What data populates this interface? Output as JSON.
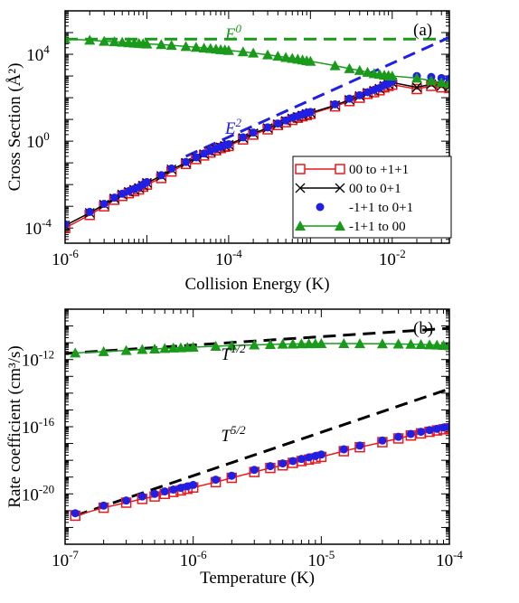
{
  "chart_data": [
    {
      "type": "line",
      "panel_label": "(a)",
      "xlabel": "Collision Energy (K)",
      "ylabel": "Cross Section (Å²)",
      "xscale": "log",
      "yscale": "log",
      "xlim": [
        1e-06,
        0.05
      ],
      "ylim": [
        2e-05,
        1000000.0
      ],
      "xticks": [
        {
          "v": 1e-06,
          "m": "10",
          "e": "-6"
        },
        {
          "v": 0.0001,
          "m": "10",
          "e": "-4"
        },
        {
          "v": 0.01,
          "m": "10",
          "e": "-2"
        }
      ],
      "yticks": [
        {
          "v": 0.0001,
          "m": "10",
          "e": "-4"
        },
        {
          "v": 1,
          "m": "10",
          "e": "0"
        },
        {
          "v": 10000.0,
          "m": "10",
          "e": "4"
        }
      ],
      "legend_position": "inside-right",
      "series": [
        {
          "name": "00 to +1+1",
          "color": "#e8191c",
          "marker": "open-square",
          "line": "solid",
          "x": [
            1e-06,
            2e-06,
            3e-06,
            4e-06,
            5e-06,
            6e-06,
            7e-06,
            8e-06,
            9e-06,
            1e-05,
            1.5e-05,
            2e-05,
            3e-05,
            4e-05,
            5e-05,
            6e-05,
            7e-05,
            8e-05,
            9e-05,
            0.0001,
            0.00015,
            0.0002,
            0.0003,
            0.0004,
            0.0005,
            0.0006,
            0.0007,
            0.0008,
            0.0009,
            0.001,
            0.002,
            0.003,
            0.004,
            0.005,
            0.006,
            0.007,
            0.008,
            0.009,
            0.01,
            0.02,
            0.03,
            0.04,
            0.05
          ],
          "y": [
            0.0001,
            0.0004,
            0.001,
            0.002,
            0.003,
            0.004,
            0.005,
            0.006,
            0.008,
            0.01,
            0.02,
            0.04,
            0.09,
            0.15,
            0.22,
            0.3,
            0.38,
            0.48,
            0.55,
            0.6,
            1.2,
            2,
            3.5,
            5.5,
            7.5,
            9.5,
            12,
            14,
            16,
            18,
            40,
            70,
            100,
            150,
            180,
            220,
            300,
            350,
            400,
            250,
            350,
            300,
            280
          ]
        },
        {
          "name": "00 to 0+1",
          "color": "#000000",
          "marker": "x",
          "line": "solid",
          "x": [
            1e-06,
            2e-06,
            3e-06,
            4e-06,
            5e-06,
            6e-06,
            7e-06,
            8e-06,
            9e-06,
            1e-05,
            1.5e-05,
            2e-05,
            3e-05,
            4e-05,
            5e-05,
            6e-05,
            7e-05,
            8e-05,
            9e-05,
            0.0001,
            0.00015,
            0.0002,
            0.0003,
            0.0004,
            0.0005,
            0.0006,
            0.0007,
            0.0008,
            0.0009,
            0.001,
            0.002,
            0.003,
            0.004,
            0.005,
            0.006,
            0.007,
            0.008,
            0.009,
            0.01,
            0.02,
            0.03,
            0.04,
            0.05
          ],
          "y": [
            0.00013,
            0.0005,
            0.0012,
            0.0023,
            0.0035,
            0.0046,
            0.0058,
            0.007,
            0.009,
            0.012,
            0.025,
            0.05,
            0.1,
            0.17,
            0.25,
            0.33,
            0.42,
            0.52,
            0.6,
            0.68,
            1.4,
            2.3,
            4,
            6,
            8.5,
            11,
            13,
            15,
            18,
            20,
            45,
            80,
            120,
            170,
            210,
            260,
            350,
            420,
            500,
            300,
            420,
            350,
            320
          ]
        },
        {
          "name": "-1+1 to 0+1",
          "color": "#1f1fe6",
          "marker": "filled-circle",
          "line": "none",
          "x": [
            1e-06,
            2e-06,
            3e-06,
            4e-06,
            5e-06,
            6e-06,
            7e-06,
            8e-06,
            9e-06,
            1e-05,
            1.5e-05,
            2e-05,
            3e-05,
            4e-05,
            5e-05,
            6e-05,
            7e-05,
            8e-05,
            9e-05,
            0.0001,
            0.00015,
            0.0002,
            0.0003,
            0.0004,
            0.0005,
            0.0006,
            0.0007,
            0.0008,
            0.0009,
            0.001,
            0.002,
            0.003,
            0.004,
            0.005,
            0.006,
            0.007,
            0.008,
            0.009,
            0.01,
            0.02,
            0.03,
            0.04,
            0.05
          ],
          "y": [
            0.00015,
            0.00055,
            0.0013,
            0.0025,
            0.0038,
            0.005,
            0.0063,
            0.0075,
            0.01,
            0.013,
            0.027,
            0.055,
            0.11,
            0.18,
            0.27,
            0.36,
            0.45,
            0.55,
            0.65,
            0.72,
            1.5,
            2.5,
            4.3,
            6.5,
            9,
            12,
            14,
            17,
            20,
            22,
            50,
            90,
            130,
            180,
            230,
            280,
            380,
            450,
            550,
            1000,
            900,
            800,
            750
          ]
        },
        {
          "name": "-1+1 to 00",
          "color": "#1a9a1a",
          "marker": "filled-triangle",
          "line": "solid",
          "x": [
            1e-06,
            2e-06,
            3e-06,
            4e-06,
            5e-06,
            6e-06,
            7e-06,
            8e-06,
            9e-06,
            1e-05,
            1.5e-05,
            2e-05,
            3e-05,
            4e-05,
            5e-05,
            6e-05,
            7e-05,
            8e-05,
            9e-05,
            0.0001,
            0.00015,
            0.0002,
            0.0003,
            0.0004,
            0.0005,
            0.0006,
            0.0007,
            0.0008,
            0.0009,
            0.001,
            0.002,
            0.003,
            0.004,
            0.005,
            0.006,
            0.007,
            0.008,
            0.009,
            0.01,
            0.02,
            0.03,
            0.04,
            0.05
          ],
          "y": [
            50000,
            45000,
            40000,
            38000,
            36000,
            34000,
            33000,
            32000,
            31000,
            30000,
            28000,
            26000,
            23000,
            21000,
            19500,
            18500,
            17500,
            16500,
            16000,
            15000,
            13000,
            11500,
            9500,
            8200,
            7200,
            6500,
            6000,
            5500,
            5100,
            4800,
            3000,
            2200,
            1800,
            1500,
            1300,
            1200,
            1100,
            1050,
            1000,
            800,
            600,
            500,
            450
          ]
        }
      ],
      "reference_lines": [
        {
          "name": "E⁰",
          "label_main": "E",
          "label_sup": "0",
          "color": "#1a9a1a",
          "style": "dashed",
          "x": [
            1e-06,
            0.05
          ],
          "y": [
            50000,
            50000
          ]
        },
        {
          "name": "E²",
          "label_main": "E",
          "label_sup": "2",
          "color": "#1f1fe6",
          "style": "dashed",
          "x": [
            3e-05,
            0.05
          ],
          "y": [
            0.2,
            60000
          ]
        }
      ]
    },
    {
      "type": "line",
      "panel_label": "(b)",
      "xlabel": "Temperature (K)",
      "ylabel": "Rate coefficient (cm³/s)",
      "xscale": "log",
      "yscale": "log",
      "xlim": [
        1e-07,
        0.0001
      ],
      "ylim": [
        1e-23,
        1e-09
      ],
      "xticks": [
        {
          "v": 1e-07,
          "m": "10",
          "e": "-7"
        },
        {
          "v": 1e-06,
          "m": "10",
          "e": "-6"
        },
        {
          "v": 1e-05,
          "m": "10",
          "e": "-5"
        },
        {
          "v": 0.0001,
          "m": "10",
          "e": "-4"
        }
      ],
      "yticks": [
        {
          "v": 1e-12,
          "m": "10",
          "e": "-12"
        },
        {
          "v": 1e-16,
          "m": "10",
          "e": "-16"
        },
        {
          "v": 1e-20,
          "m": "10",
          "e": "-20"
        }
      ],
      "series": [
        {
          "name": "00 to +1+1",
          "color": "#e8191c",
          "marker": "open-square",
          "line": "solid",
          "x": [
            1.2e-07,
            2e-07,
            3e-07,
            4e-07,
            5e-07,
            6e-07,
            7e-07,
            8e-07,
            9e-07,
            1e-06,
            1.5e-06,
            2e-06,
            3e-06,
            4e-06,
            5e-06,
            6e-06,
            7e-06,
            8e-06,
            9e-06,
            1e-05,
            1.5e-05,
            2e-05,
            3e-05,
            4e-05,
            5e-05,
            6e-05,
            7e-05,
            8e-05,
            9e-05,
            0.0001
          ],
          "y": [
            5e-22,
            1.5e-21,
            3e-21,
            5e-21,
            7e-21,
            1e-20,
            1.3e-20,
            1.6e-20,
            2e-20,
            2.4e-20,
            5e-20,
            9e-20,
            2e-19,
            3.5e-19,
            5e-19,
            7e-19,
            9e-19,
            1.1e-18,
            1.3e-18,
            1.6e-18,
            3.5e-18,
            6e-18,
            1.2e-17,
            2e-17,
            3e-17,
            4e-17,
            5e-17,
            6e-17,
            7e-17,
            8e-17
          ]
        },
        {
          "name": "-1+1 to 0+1",
          "color": "#1f1fe6",
          "marker": "filled-circle",
          "line": "none",
          "x": [
            1.2e-07,
            2e-07,
            3e-07,
            4e-07,
            5e-07,
            6e-07,
            7e-07,
            8e-07,
            9e-07,
            1e-06,
            1.5e-06,
            2e-06,
            3e-06,
            4e-06,
            5e-06,
            6e-06,
            7e-06,
            8e-06,
            9e-06,
            1e-05,
            1.5e-05,
            2e-05,
            3e-05,
            4e-05,
            5e-05,
            6e-05,
            7e-05,
            8e-05,
            9e-05,
            0.0001
          ],
          "y": [
            7e-22,
            2e-21,
            4e-21,
            7e-21,
            1e-20,
            1.4e-20,
            1.8e-20,
            2.3e-20,
            2.8e-20,
            3.4e-20,
            7e-20,
            1.2e-19,
            2.7e-19,
            4.5e-19,
            6.5e-19,
            9e-19,
            1.2e-18,
            1.5e-18,
            1.8e-18,
            2.2e-18,
            4.5e-18,
            7.5e-18,
            1.5e-17,
            2.5e-17,
            3.7e-17,
            5e-17,
            6.3e-17,
            7.5e-17,
            9e-17,
            1e-16
          ]
        },
        {
          "name": "-1+1 to 00",
          "color": "#1a9a1a",
          "marker": "filled-triangle",
          "line": "solid",
          "x": [
            1.2e-07,
            2e-07,
            3e-07,
            4e-07,
            5e-07,
            6e-07,
            7e-07,
            8e-07,
            9e-07,
            1e-06,
            1.5e-06,
            2e-06,
            3e-06,
            4e-06,
            5e-06,
            6e-06,
            7e-06,
            8e-06,
            9e-06,
            1e-05,
            1.5e-05,
            2e-05,
            3e-05,
            4e-05,
            5e-05,
            6e-05,
            7e-05,
            8e-05,
            9e-05,
            0.0001
          ],
          "y": [
            2.5e-12,
            3e-12,
            3.5e-12,
            4e-12,
            4.3e-12,
            4.6e-12,
            4.9e-12,
            5.1e-12,
            5.3e-12,
            5.5e-12,
            6.2e-12,
            6.8e-12,
            7.5e-12,
            8e-12,
            8.3e-12,
            8.5e-12,
            8.7e-12,
            8.8e-12,
            8.9e-12,
            9e-12,
            9e-12,
            8.9e-12,
            8.7e-12,
            8.5e-12,
            8.2e-12,
            7.9e-12,
            7.6e-12,
            7.3e-12,
            7e-12,
            6.7e-12
          ]
        }
      ],
      "reference_lines": [
        {
          "name": "T^1/2",
          "label_main": "T",
          "label_sup": "1/2",
          "color": "#000000",
          "style": "dashed",
          "x": [
            1e-07,
            0.0001
          ],
          "y": [
            2.3e-12,
            7.3e-11
          ]
        },
        {
          "name": "T^5/2",
          "label_main": "T",
          "label_sup": "5/2",
          "color": "#000000",
          "style": "dashed",
          "x": [
            1.2e-07,
            0.0001
          ],
          "y": [
            5e-22,
            1.8e-14
          ]
        }
      ]
    }
  ]
}
